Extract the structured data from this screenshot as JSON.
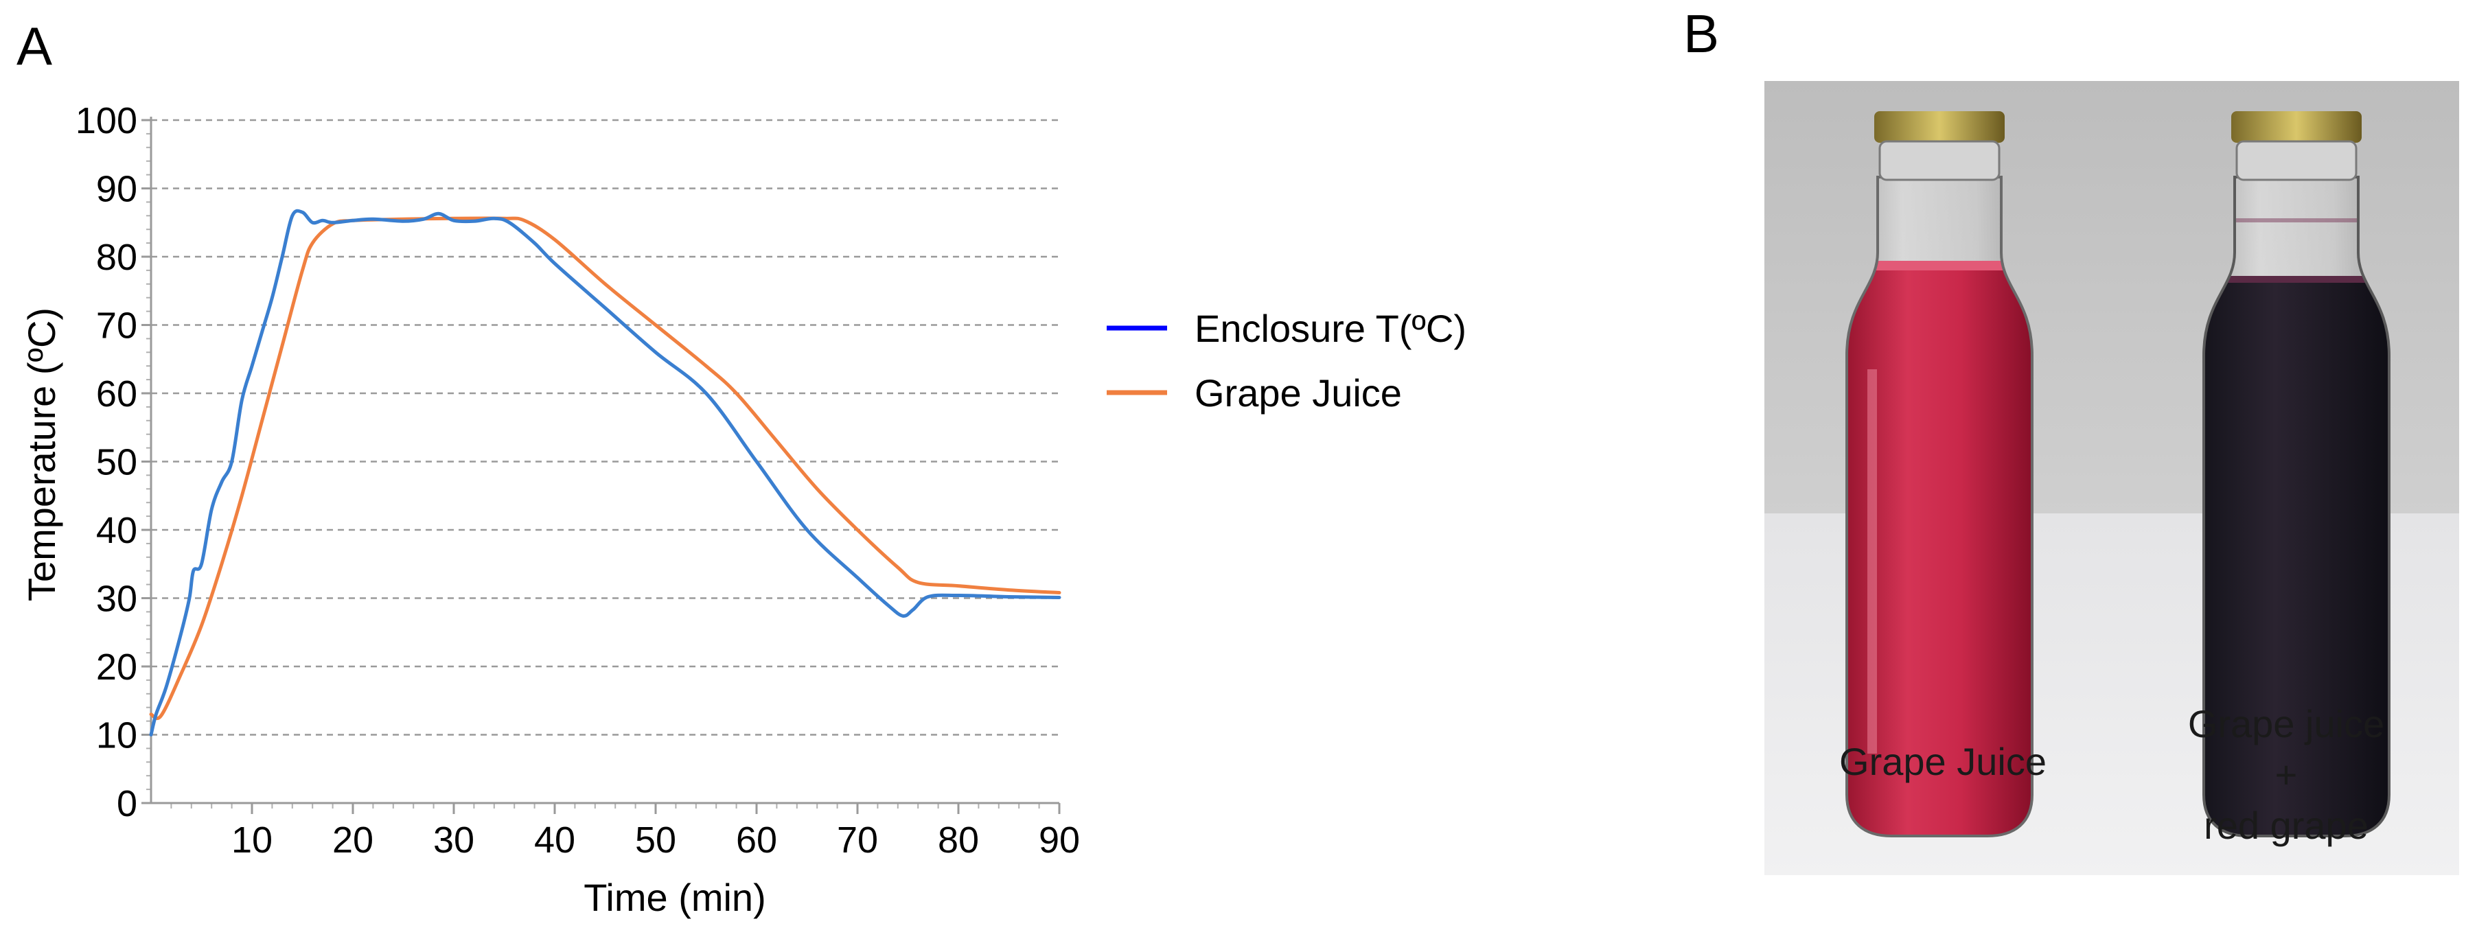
{
  "panels": {
    "a_label": "A",
    "b_label": "B"
  },
  "chart_data": {
    "type": "line",
    "title": "",
    "xlabel": "Time (min)",
    "ylabel": "Temperature (ºC)",
    "xlim": [
      0,
      90
    ],
    "ylim": [
      0,
      100
    ],
    "x_ticks": [
      10,
      20,
      30,
      40,
      50,
      60,
      70,
      80,
      90
    ],
    "y_ticks": [
      0,
      10,
      20,
      30,
      40,
      50,
      60,
      70,
      80,
      90,
      100
    ],
    "grid": "horizontal dashed",
    "legend_position": "right",
    "series": [
      {
        "name": "Enclosure T(ºC)",
        "legend_color": "#0000ff",
        "color": "#3a7fd0",
        "points": [
          [
            0,
            10
          ],
          [
            0.5,
            13
          ],
          [
            1.5,
            17
          ],
          [
            3,
            25
          ],
          [
            3.8,
            30
          ],
          [
            4.2,
            34
          ],
          [
            5,
            35
          ],
          [
            6,
            43
          ],
          [
            7,
            47
          ],
          [
            8,
            50
          ],
          [
            9,
            59
          ],
          [
            10,
            64
          ],
          [
            11,
            69
          ],
          [
            12,
            74
          ],
          [
            13,
            80
          ],
          [
            14,
            86
          ],
          [
            15,
            86.5
          ],
          [
            16,
            85
          ],
          [
            17,
            85.3
          ],
          [
            18,
            85
          ],
          [
            20,
            85.3
          ],
          [
            22,
            85.5
          ],
          [
            25,
            85.2
          ],
          [
            27,
            85.5
          ],
          [
            28.5,
            86.3
          ],
          [
            30,
            85.3
          ],
          [
            32,
            85.2
          ],
          [
            34,
            85.6
          ],
          [
            35.5,
            85
          ],
          [
            38,
            82
          ],
          [
            40,
            79
          ],
          [
            45,
            72.5
          ],
          [
            50,
            66
          ],
          [
            55,
            60
          ],
          [
            60,
            50
          ],
          [
            65,
            40
          ],
          [
            70,
            33
          ],
          [
            73,
            29
          ],
          [
            74.5,
            27.4
          ],
          [
            75.5,
            28.3
          ],
          [
            77,
            30.2
          ],
          [
            80,
            30.4
          ],
          [
            85,
            30.2
          ],
          [
            90,
            30.1
          ]
        ]
      },
      {
        "name": "Grape Juice",
        "legend_color": "#f07f3f",
        "color": "#f08040",
        "points": [
          [
            0,
            13
          ],
          [
            1,
            12.8
          ],
          [
            3,
            19
          ],
          [
            5,
            26
          ],
          [
            7,
            35
          ],
          [
            9,
            45
          ],
          [
            11,
            56
          ],
          [
            13,
            67
          ],
          [
            15,
            78
          ],
          [
            16,
            82
          ],
          [
            18,
            84.8
          ],
          [
            20,
            85.3
          ],
          [
            25,
            85.5
          ],
          [
            30,
            85.6
          ],
          [
            35,
            85.6
          ],
          [
            37,
            85.3
          ],
          [
            40,
            82.5
          ],
          [
            45,
            76
          ],
          [
            50,
            70
          ],
          [
            55,
            64
          ],
          [
            58,
            60
          ],
          [
            62,
            53
          ],
          [
            66,
            46
          ],
          [
            70,
            40
          ],
          [
            74,
            34.5
          ],
          [
            76,
            32.3
          ],
          [
            80,
            31.8
          ],
          [
            85,
            31.2
          ],
          [
            90,
            30.8
          ]
        ]
      }
    ]
  },
  "photo": {
    "bottle_left_caption": "Grape Juice",
    "bottle_right_caption_line1": "Grape juice",
    "bottle_right_caption_line2": "+",
    "bottle_right_caption_line3": "red grape"
  }
}
